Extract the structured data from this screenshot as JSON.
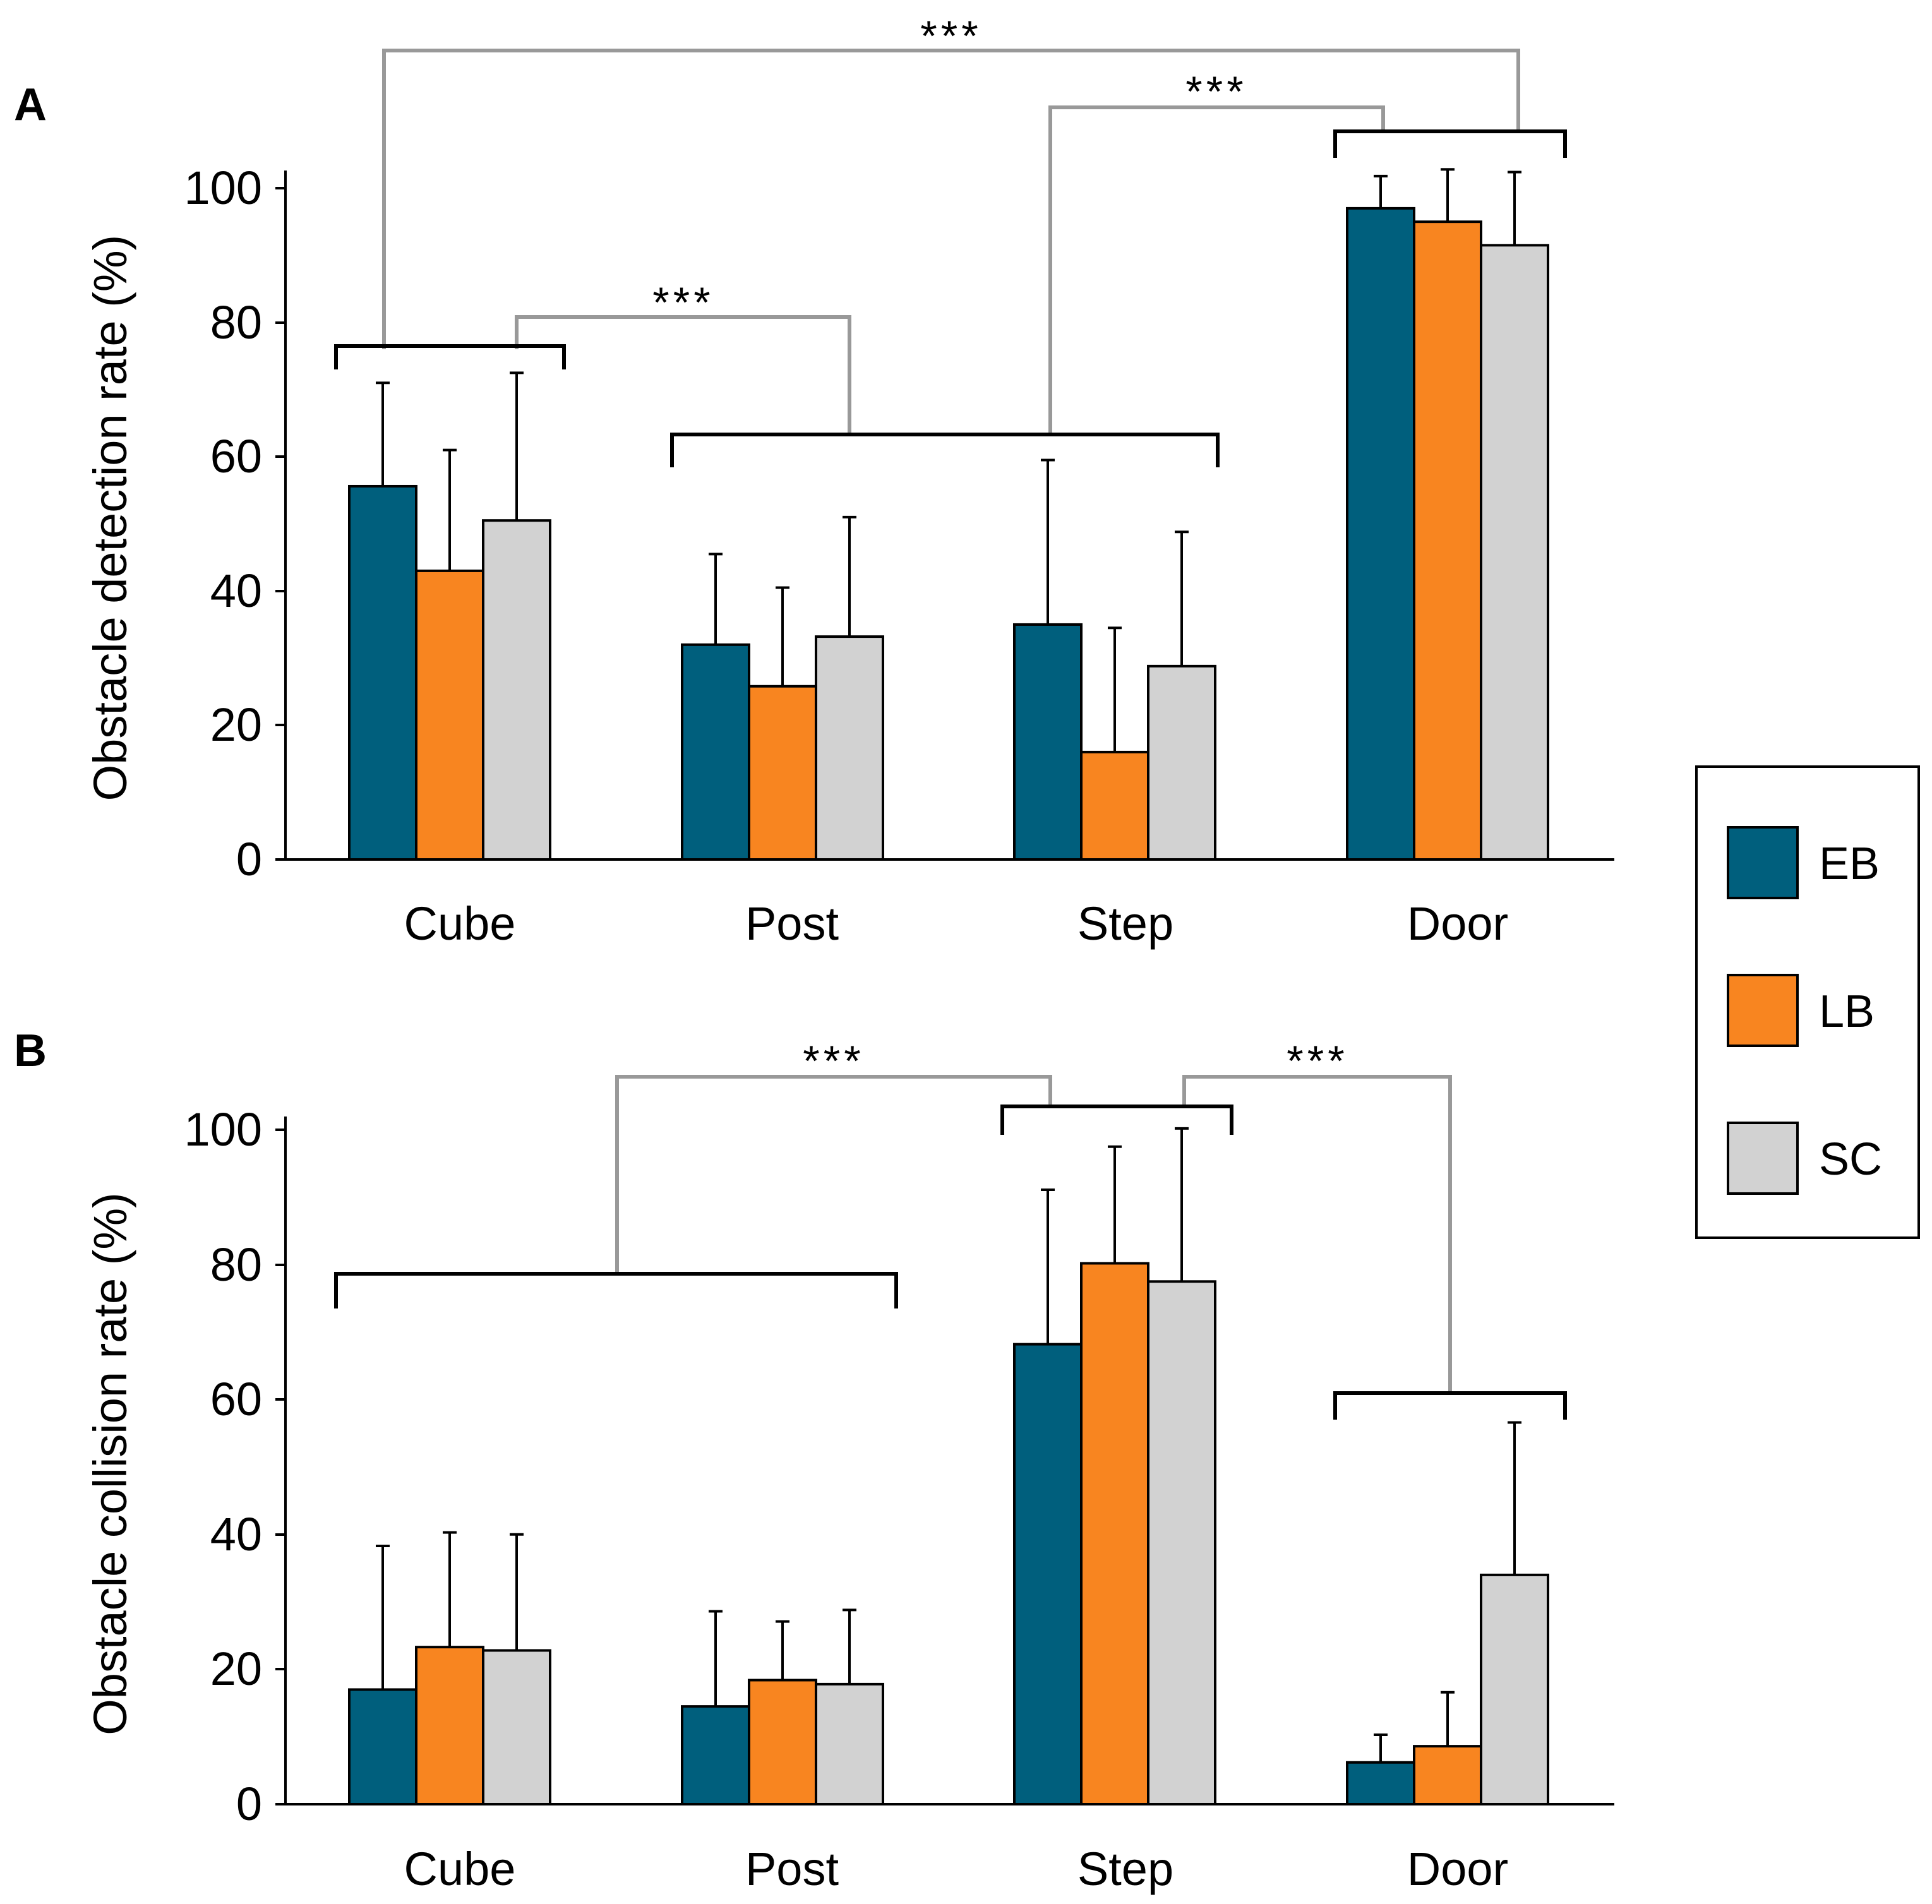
{
  "chart_data": [
    {
      "panel": "A",
      "type": "bar",
      "categories": [
        "Cube",
        "Post",
        "Step",
        "Door"
      ],
      "series": [
        {
          "name": "EB",
          "values": [
            55.6,
            32.0,
            35.0,
            97.0
          ],
          "errors": [
            15.4,
            13.5,
            24.5,
            4.8
          ]
        },
        {
          "name": "LB",
          "values": [
            43.0,
            25.8,
            16.0,
            95.0
          ],
          "errors": [
            18.0,
            14.7,
            18.5,
            7.8
          ]
        },
        {
          "name": "SC",
          "values": [
            50.5,
            33.2,
            28.8,
            91.5
          ],
          "errors": [
            22.0,
            17.8,
            20.0,
            10.9
          ]
        }
      ],
      "ylabel": "Obstacle detection rate (%)",
      "ylim": [
        0,
        100
      ],
      "yticks": [
        "0",
        "20",
        "40",
        "60",
        "80",
        "100"
      ],
      "significance": [
        {
          "label": "***",
          "groups": [
            [
              "Cube"
            ],
            [
              "Door"
            ]
          ]
        },
        {
          "label": "***",
          "groups": [
            [
              "Post",
              "Step"
            ],
            [
              "Door"
            ]
          ]
        },
        {
          "label": "***",
          "groups": [
            [
              "Cube"
            ],
            [
              "Post",
              "Step"
            ]
          ]
        }
      ]
    },
    {
      "panel": "B",
      "type": "bar",
      "categories": [
        "Cube",
        "Post",
        "Step",
        "Door"
      ],
      "series": [
        {
          "name": "EB",
          "values": [
            17.0,
            14.5,
            68.2,
            6.2
          ],
          "errors": [
            21.3,
            14.1,
            22.9,
            4.1
          ]
        },
        {
          "name": "LB",
          "values": [
            23.3,
            18.4,
            80.2,
            8.6
          ],
          "errors": [
            17.0,
            8.7,
            17.3,
            8.0
          ]
        },
        {
          "name": "SC",
          "values": [
            22.8,
            17.8,
            77.5,
            34.0
          ],
          "errors": [
            17.2,
            11.0,
            22.7,
            22.6
          ]
        }
      ],
      "ylabel": "Obstacle collision rate (%)",
      "ylim": [
        0,
        100
      ],
      "yticks": [
        "0",
        "20",
        "40",
        "60",
        "80",
        "100"
      ],
      "significance": [
        {
          "label": "***",
          "groups": [
            [
              "Cube",
              "Post"
            ],
            [
              "Step"
            ]
          ]
        },
        {
          "label": "***",
          "groups": [
            [
              "Step"
            ],
            [
              "Door"
            ]
          ]
        }
      ]
    }
  ],
  "legend": {
    "items": [
      {
        "label": "EB",
        "color": "#005f7d"
      },
      {
        "label": "LB",
        "color": "#f88520"
      },
      {
        "label": "SC",
        "color": "#d2d2d2"
      }
    ]
  }
}
